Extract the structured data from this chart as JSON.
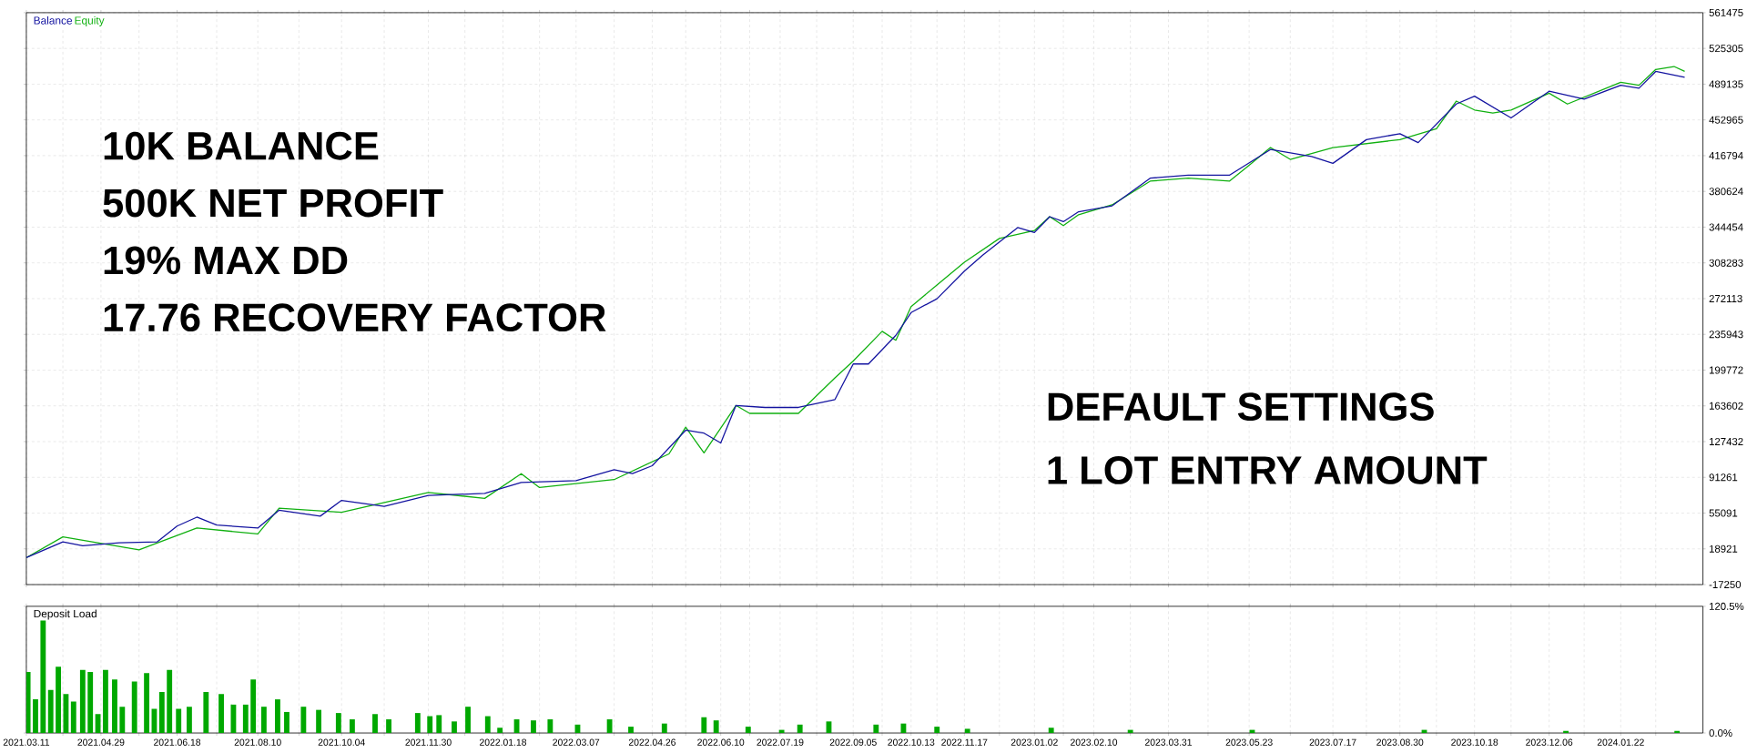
{
  "chart_data": [
    {
      "type": "line",
      "xlim": [
        "2021-03-11",
        "2024-03-16"
      ],
      "ylim": [
        -17250,
        561475
      ],
      "xticks": [
        "2021-03-11",
        "2021-04-04",
        "2021-04-29",
        "2021-05-24",
        "2021-06-18",
        "2021-07-14",
        "2021-08-10",
        "2021-09-06",
        "2021-10-04",
        "2021-11-01",
        "2021-11-30",
        "2021-12-24",
        "2022-01-18",
        "2022-02-11",
        "2022-03-07",
        "2022-04-01",
        "2022-04-26",
        "2022-05-18",
        "2022-06-10",
        "2022-06-29",
        "2022-07-19",
        "2022-08-12",
        "2022-09-05",
        "2022-09-24",
        "2022-10-13",
        "2022-10-30",
        "2022-11-17",
        "2022-12-10",
        "2023-01-02",
        "2023-01-21",
        "2023-02-10",
        "2023-03-06",
        "2023-03-31",
        "2023-04-26",
        "2023-05-23",
        "2023-06-19",
        "2023-07-17",
        "2023-08-08",
        "2023-08-30",
        "2023-09-23",
        "2023-10-18",
        "2023-11-11",
        "2023-12-06",
        "2023-12-29",
        "2024-01-22",
        "2024-02-14"
      ],
      "yticks": [
        -17250,
        18921,
        55091,
        91261,
        127432,
        163602,
        199772,
        235943,
        272113,
        308283,
        344454,
        380624,
        416794,
        452965,
        489135,
        525305,
        561475
      ],
      "tick_labels": "y",
      "grid": true,
      "legend": "top left",
      "marker": "none",
      "line_style": "solid",
      "annotations": [
        "10K BALANCE",
        "500K NET PROFIT",
        "19% MAX DD",
        "17.76 RECOVERY FACTOR",
        "DEFAULT SETTINGS",
        "1 LOT ENTRY AMOUNT"
      ],
      "series": [
        {
          "name": "Balance",
          "color": "#1414a0",
          "x": [
            "2021-03-11",
            "2021-04-04",
            "2021-04-17",
            "2021-05-11",
            "2021-06-05",
            "2021-06-18",
            "2021-07-01",
            "2021-07-14",
            "2021-08-10",
            "2021-08-24",
            "2021-09-20",
            "2021-10-04",
            "2021-11-01",
            "2021-11-30",
            "2022-01-06",
            "2022-01-30",
            "2022-03-07",
            "2022-04-01",
            "2022-04-13",
            "2022-04-26",
            "2022-05-18",
            "2022-05-30",
            "2022-06-10",
            "2022-06-20",
            "2022-07-09",
            "2022-07-31",
            "2022-08-24",
            "2022-09-05",
            "2022-09-15",
            "2022-10-03",
            "2022-10-13",
            "2022-10-30",
            "2022-11-17",
            "2022-11-29",
            "2022-12-22",
            "2023-01-02",
            "2023-01-12",
            "2023-01-21",
            "2023-01-31",
            "2023-02-22",
            "2023-03-19",
            "2023-04-13",
            "2023-05-10",
            "2023-06-06",
            "2023-07-03",
            "2023-07-17",
            "2023-08-08",
            "2023-08-30",
            "2023-09-11",
            "2023-10-06",
            "2023-10-18",
            "2023-11-11",
            "2023-11-24",
            "2023-12-06",
            "2023-12-29",
            "2024-01-22",
            "2024-02-03",
            "2024-02-14",
            "2024-03-04"
          ],
          "values": [
            10000,
            26000,
            22000,
            25000,
            26000,
            42000,
            51000,
            43000,
            40000,
            58000,
            52000,
            68000,
            62000,
            73000,
            75000,
            86000,
            88000,
            99000,
            95000,
            103000,
            139000,
            136000,
            126000,
            164000,
            162000,
            162000,
            170000,
            206000,
            206000,
            235000,
            258000,
            272000,
            300000,
            316000,
            344000,
            339000,
            355000,
            350000,
            360000,
            366000,
            394000,
            397000,
            397000,
            423000,
            416000,
            409000,
            433000,
            439000,
            430000,
            469000,
            477000,
            455000,
            469000,
            482000,
            474000,
            488000,
            485000,
            502000,
            496000
          ]
        },
        {
          "name": "Equity",
          "color": "#10b010",
          "x": [
            "2021-03-11",
            "2021-04-04",
            "2021-05-24",
            "2021-07-01",
            "2021-08-10",
            "2021-08-24",
            "2021-10-04",
            "2021-11-30",
            "2022-01-06",
            "2022-01-30",
            "2022-02-11",
            "2022-04-01",
            "2022-05-07",
            "2022-05-18",
            "2022-05-30",
            "2022-06-20",
            "2022-06-29",
            "2022-07-31",
            "2022-08-24",
            "2022-09-05",
            "2022-09-24",
            "2022-10-03",
            "2022-10-13",
            "2022-10-30",
            "2022-11-17",
            "2022-12-10",
            "2023-01-02",
            "2023-01-12",
            "2023-01-21",
            "2023-01-31",
            "2023-02-22",
            "2023-03-19",
            "2023-04-13",
            "2023-05-10",
            "2023-05-23",
            "2023-06-06",
            "2023-06-19",
            "2023-07-17",
            "2023-08-30",
            "2023-09-23",
            "2023-10-06",
            "2023-10-18",
            "2023-10-30",
            "2023-11-11",
            "2023-12-06",
            "2023-12-18",
            "2024-01-22",
            "2024-02-03",
            "2024-02-14",
            "2024-02-26",
            "2024-03-04"
          ],
          "values": [
            10000,
            31000,
            18000,
            40000,
            34000,
            60000,
            56000,
            76000,
            70000,
            95000,
            81000,
            89000,
            115000,
            142000,
            116000,
            164000,
            156000,
            156000,
            192000,
            209000,
            239000,
            230000,
            264000,
            286000,
            309000,
            333000,
            341000,
            355000,
            346000,
            357000,
            367000,
            391000,
            394000,
            391000,
            407000,
            425000,
            413000,
            425000,
            433000,
            444000,
            472000,
            463000,
            460000,
            463000,
            480000,
            469000,
            491000,
            488000,
            504000,
            507000,
            502000
          ]
        }
      ]
    },
    {
      "type": "bar",
      "title": "Deposit Load",
      "xlim": [
        "2021-03-11",
        "2024-03-16"
      ],
      "ylim": [
        0,
        120.5
      ],
      "xticks": [
        {
          "value": "2021-03-11",
          "label": "2021.03.11"
        },
        {
          "value": "2021-04-04",
          "label": null
        },
        {
          "value": "2021-04-29",
          "label": "2021.04.29"
        },
        {
          "value": "2021-05-24",
          "label": null
        },
        {
          "value": "2021-06-18",
          "label": "2021.06.18"
        },
        {
          "value": "2021-07-14",
          "label": null
        },
        {
          "value": "2021-08-10",
          "label": "2021.08.10"
        },
        {
          "value": "2021-09-06",
          "label": null
        },
        {
          "value": "2021-10-04",
          "label": "2021.10.04"
        },
        {
          "value": "2021-11-01",
          "label": null
        },
        {
          "value": "2021-11-30",
          "label": "2021.11.30"
        },
        {
          "value": "2021-12-24",
          "label": null
        },
        {
          "value": "2022-01-18",
          "label": "2022.01.18"
        },
        {
          "value": "2022-02-11",
          "label": null
        },
        {
          "value": "2022-03-07",
          "label": "2022.03.07"
        },
        {
          "value": "2022-04-01",
          "label": null
        },
        {
          "value": "2022-04-26",
          "label": "2022.04.26"
        },
        {
          "value": "2022-05-18",
          "label": null
        },
        {
          "value": "2022-06-10",
          "label": "2022.06.10"
        },
        {
          "value": "2022-06-29",
          "label": null
        },
        {
          "value": "2022-07-19",
          "label": "2022.07.19"
        },
        {
          "value": "2022-08-12",
          "label": null
        },
        {
          "value": "2022-09-05",
          "label": "2022.09.05"
        },
        {
          "value": "2022-09-24",
          "label": null
        },
        {
          "value": "2022-10-13",
          "label": "2022.10.13"
        },
        {
          "value": "2022-10-30",
          "label": null
        },
        {
          "value": "2022-11-17",
          "label": "2022.11.17"
        },
        {
          "value": "2022-12-10",
          "label": null
        },
        {
          "value": "2023-01-02",
          "label": "2023.01.02"
        },
        {
          "value": "2023-01-21",
          "label": null
        },
        {
          "value": "2023-02-10",
          "label": "2023.02.10"
        },
        {
          "value": "2023-03-06",
          "label": null
        },
        {
          "value": "2023-03-31",
          "label": "2023.03.31"
        },
        {
          "value": "2023-04-26",
          "label": null
        },
        {
          "value": "2023-05-23",
          "label": "2023.05.23"
        },
        {
          "value": "2023-06-19",
          "label": null
        },
        {
          "value": "2023-07-17",
          "label": "2023.07.17"
        },
        {
          "value": "2023-08-08",
          "label": null
        },
        {
          "value": "2023-08-30",
          "label": "2023.08.30"
        },
        {
          "value": "2023-09-23",
          "label": null
        },
        {
          "value": "2023-10-18",
          "label": "2023.10.18"
        },
        {
          "value": "2023-11-11",
          "label": null
        },
        {
          "value": "2023-12-06",
          "label": "2023.12.06"
        },
        {
          "value": "2023-12-29",
          "label": null
        },
        {
          "value": "2024-01-22",
          "label": "2024.01.22"
        },
        {
          "value": "2024-02-14",
          "label": null
        }
      ],
      "yticks": [
        {
          "value": 0,
          "label": "0.0%"
        },
        {
          "value": 120.5,
          "label": "120.5%"
        }
      ],
      "grid": "x",
      "color": "#00a800",
      "x": [
        "2021-03-12",
        "2021-03-17",
        "2021-03-22",
        "2021-03-27",
        "2021-04-01",
        "2021-04-06",
        "2021-04-11",
        "2021-04-17",
        "2021-04-22",
        "2021-04-27",
        "2021-05-02",
        "2021-05-08",
        "2021-05-13",
        "2021-05-21",
        "2021-05-29",
        "2021-06-03",
        "2021-06-08",
        "2021-06-13",
        "2021-06-19",
        "2021-06-26",
        "2021-07-07",
        "2021-07-17",
        "2021-07-25",
        "2021-08-02",
        "2021-08-07",
        "2021-08-14",
        "2021-08-23",
        "2021-08-29",
        "2021-09-09",
        "2021-09-19",
        "2021-10-02",
        "2021-10-11",
        "2021-10-26",
        "2021-11-04",
        "2021-11-23",
        "2021-12-01",
        "2021-12-07",
        "2021-12-17",
        "2021-12-26",
        "2022-01-08",
        "2022-01-16",
        "2022-01-27",
        "2022-02-07",
        "2022-02-18",
        "2022-03-08",
        "2022-03-29",
        "2022-04-12",
        "2022-05-04",
        "2022-05-30",
        "2022-06-07",
        "2022-06-28",
        "2022-07-20",
        "2022-08-01",
        "2022-08-20",
        "2022-09-20",
        "2022-10-08",
        "2022-10-30",
        "2022-11-19",
        "2023-01-13",
        "2023-03-06",
        "2023-05-25",
        "2023-09-15",
        "2023-12-17",
        "2024-02-28"
      ],
      "values": [
        58,
        32,
        107,
        41,
        63,
        37,
        30,
        60,
        58,
        18,
        60,
        51,
        25,
        49,
        57,
        23,
        39,
        60,
        23,
        25,
        39,
        37,
        27,
        27,
        51,
        25,
        32,
        20,
        25,
        22,
        19,
        13,
        18,
        13,
        19,
        16,
        17,
        11,
        25,
        16,
        5,
        13,
        12,
        13,
        8,
        13,
        6,
        9,
        15,
        12,
        6,
        3,
        8,
        11,
        8,
        9,
        6,
        4,
        5,
        3,
        3,
        3,
        2,
        2
      ]
    }
  ]
}
